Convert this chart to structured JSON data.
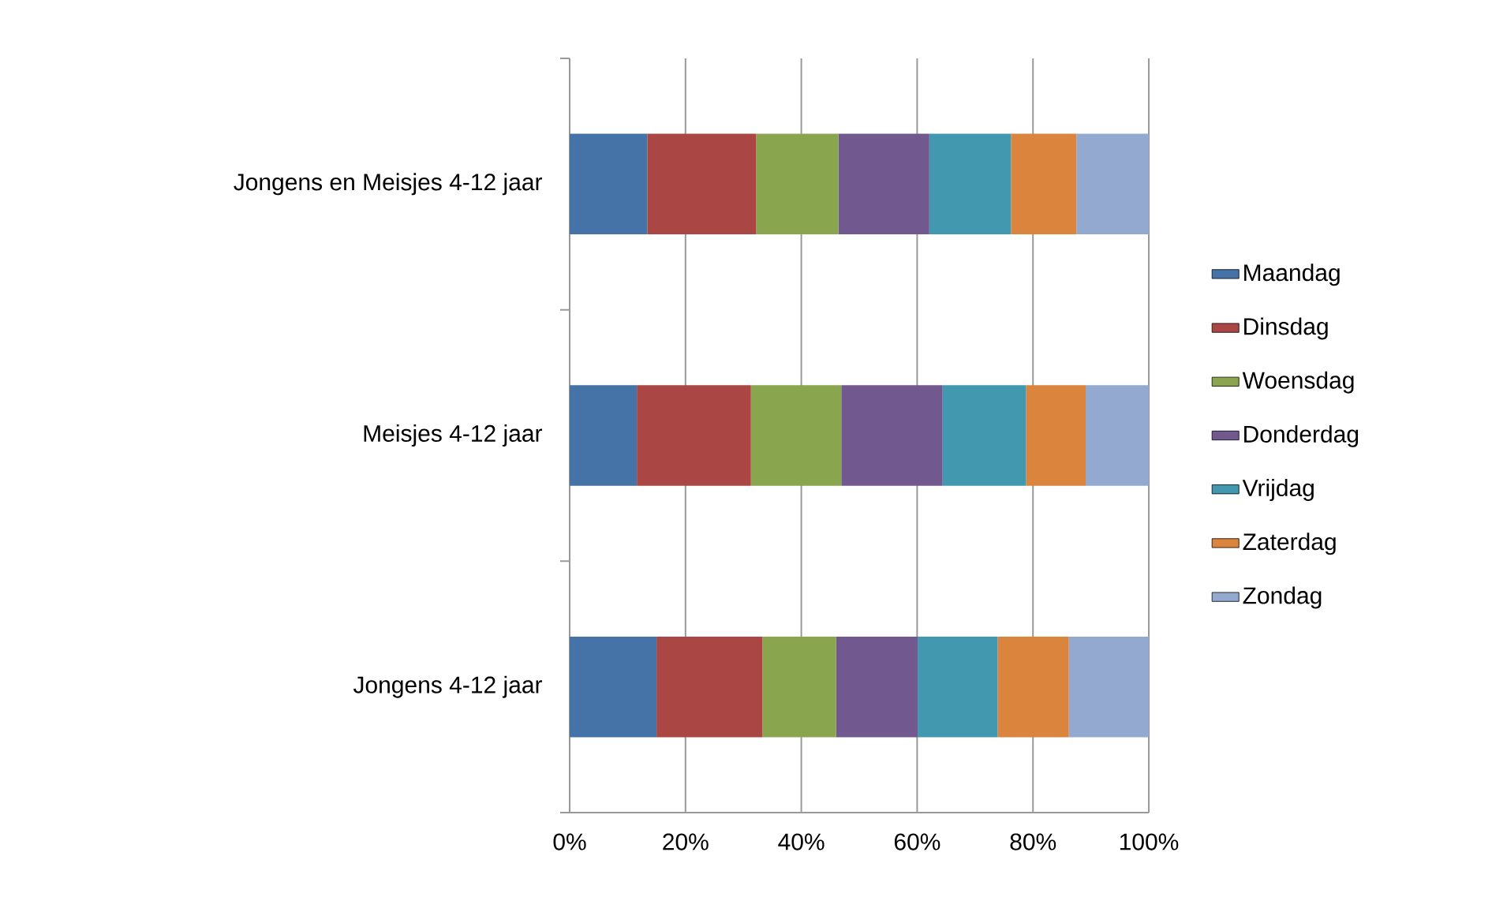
{
  "chart_data": {
    "type": "bar",
    "orientation": "horizontal",
    "stacked": true,
    "categories": [
      "Jongens en Meisjes 4-12 jaar",
      "Meisjes 4-12 jaar",
      "Jongens 4-12 jaar"
    ],
    "series": [
      {
        "name": "Maandag",
        "color": "#4572a7",
        "values": [
          13.4,
          11.6,
          15.0
        ]
      },
      {
        "name": "Dinsdag",
        "color": "#aa4643",
        "values": [
          18.8,
          19.7,
          18.3
        ]
      },
      {
        "name": "Woensdag",
        "color": "#89a54e",
        "values": [
          14.2,
          15.6,
          12.7
        ]
      },
      {
        "name": "Donderdag",
        "color": "#71588f",
        "values": [
          15.7,
          17.5,
          14.1
        ]
      },
      {
        "name": "Vrijdag",
        "color": "#4198af",
        "values": [
          14.1,
          14.4,
          13.8
        ]
      },
      {
        "name": "Zaterdag",
        "color": "#db843d",
        "values": [
          11.3,
          10.3,
          12.3
        ]
      },
      {
        "name": "Zondag",
        "color": "#93a9cf",
        "values": [
          12.5,
          10.9,
          13.8
        ]
      }
    ],
    "xlim": [
      0,
      100
    ],
    "xticks": [
      {
        "value": 0,
        "label": "0%"
      },
      {
        "value": 20,
        "label": "20%"
      },
      {
        "value": 40,
        "label": "40%"
      },
      {
        "value": 60,
        "label": "60%"
      },
      {
        "value": 80,
        "label": "80%"
      },
      {
        "value": 100,
        "label": "100%"
      }
    ],
    "grid": "x",
    "legend": "right"
  }
}
